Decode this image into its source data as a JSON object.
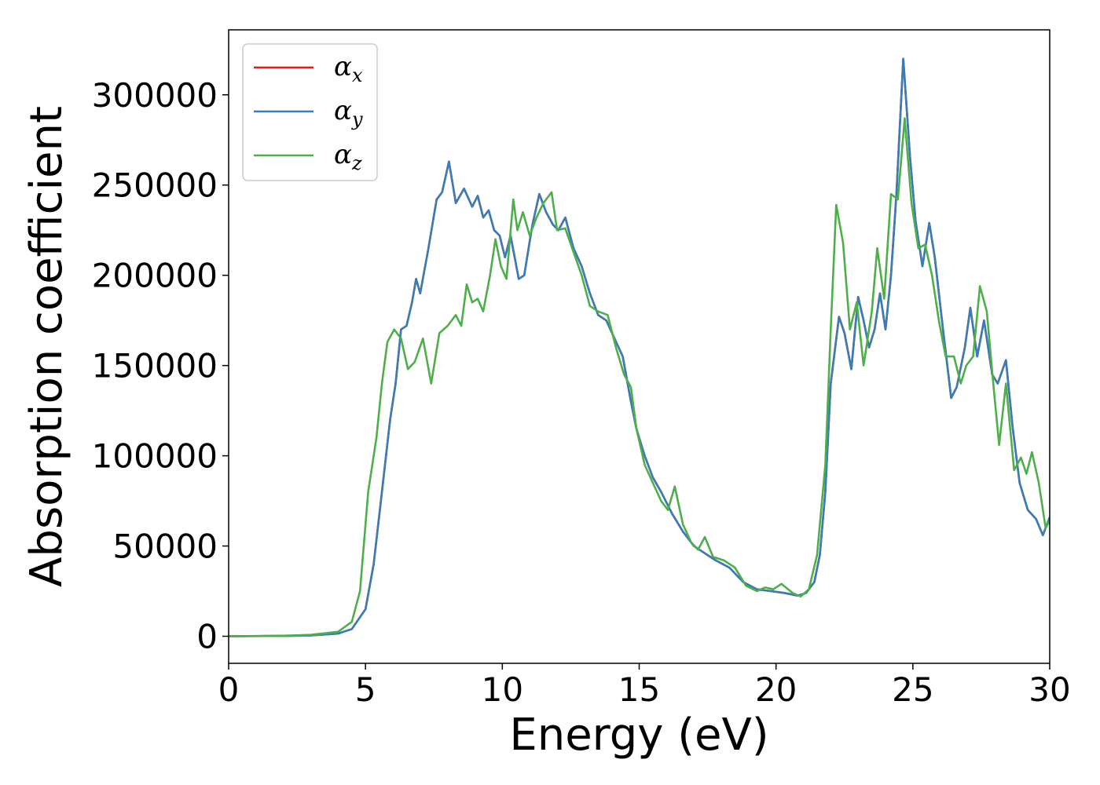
{
  "chart_data": {
    "type": "line",
    "xlabel": "Energy (eV)",
    "ylabel": "Absorption coefficient",
    "xlim": [
      0,
      30
    ],
    "ylim": [
      -15000,
      336000
    ],
    "xticks": [
      0,
      5,
      10,
      15,
      20,
      25,
      30
    ],
    "yticks": [
      0,
      50000,
      100000,
      150000,
      200000,
      250000,
      300000
    ],
    "xtick_labels": [
      "0",
      "5",
      "10",
      "15",
      "20",
      "25",
      "30"
    ],
    "ytick_labels": [
      "0",
      "50000",
      "100000",
      "150000",
      "200000",
      "250000",
      "300000"
    ],
    "grid": false,
    "legend_position": "upper-left",
    "series": [
      {
        "name": "x",
        "color": "#e41a1c",
        "points": [
          [
            0,
            0
          ],
          [
            2,
            200
          ],
          [
            3,
            500
          ],
          [
            4,
            1500
          ],
          [
            4.5,
            4000
          ],
          [
            5,
            15000
          ],
          [
            5.3,
            40000
          ],
          [
            5.6,
            80000
          ],
          [
            5.9,
            120000
          ],
          [
            6.1,
            140000
          ],
          [
            6.3,
            170000
          ],
          [
            6.5,
            172000
          ],
          [
            6.7,
            185000
          ],
          [
            6.85,
            198000
          ],
          [
            7,
            190000
          ],
          [
            7.3,
            215000
          ],
          [
            7.6,
            242000
          ],
          [
            7.8,
            246000
          ],
          [
            8.05,
            263000
          ],
          [
            8.3,
            240000
          ],
          [
            8.6,
            248000
          ],
          [
            8.9,
            238000
          ],
          [
            9.1,
            244000
          ],
          [
            9.3,
            232000
          ],
          [
            9.5,
            236000
          ],
          [
            9.7,
            225000
          ],
          [
            9.9,
            222000
          ],
          [
            10.1,
            210000
          ],
          [
            10.3,
            222000
          ],
          [
            10.6,
            198000
          ],
          [
            10.8,
            200000
          ],
          [
            11.1,
            228000
          ],
          [
            11.35,
            245000
          ],
          [
            11.6,
            235000
          ],
          [
            11.85,
            228000
          ],
          [
            12.05,
            225000
          ],
          [
            12.3,
            232000
          ],
          [
            12.6,
            215000
          ],
          [
            12.9,
            205000
          ],
          [
            13.2,
            190000
          ],
          [
            13.5,
            178000
          ],
          [
            13.8,
            175000
          ],
          [
            14.1,
            165000
          ],
          [
            14.4,
            155000
          ],
          [
            14.7,
            130000
          ],
          [
            14.9,
            115000
          ],
          [
            15.2,
            100000
          ],
          [
            15.5,
            88000
          ],
          [
            15.8,
            80000
          ],
          [
            16.2,
            68000
          ],
          [
            16.6,
            58000
          ],
          [
            17,
            50000
          ],
          [
            17.4,
            46000
          ],
          [
            17.8,
            42000
          ],
          [
            18.3,
            38000
          ],
          [
            18.8,
            30000
          ],
          [
            19.3,
            26000
          ],
          [
            19.8,
            25000
          ],
          [
            20.3,
            24000
          ],
          [
            20.8,
            22500
          ],
          [
            21.1,
            24000
          ],
          [
            21.4,
            30000
          ],
          [
            21.6,
            45000
          ],
          [
            21.8,
            80000
          ],
          [
            22,
            140000
          ],
          [
            22.3,
            177000
          ],
          [
            22.5,
            168000
          ],
          [
            22.75,
            148000
          ],
          [
            23,
            188000
          ],
          [
            23.2,
            175000
          ],
          [
            23.4,
            160000
          ],
          [
            23.6,
            170000
          ],
          [
            23.8,
            190000
          ],
          [
            24,
            170000
          ],
          [
            24.2,
            200000
          ],
          [
            24.4,
            245000
          ],
          [
            24.65,
            320000
          ],
          [
            24.9,
            265000
          ],
          [
            25.1,
            230000
          ],
          [
            25.35,
            205000
          ],
          [
            25.6,
            229000
          ],
          [
            25.8,
            210000
          ],
          [
            26.1,
            170000
          ],
          [
            26.4,
            132000
          ],
          [
            26.6,
            138000
          ],
          [
            26.9,
            160000
          ],
          [
            27.1,
            182000
          ],
          [
            27.35,
            155000
          ],
          [
            27.6,
            175000
          ],
          [
            27.9,
            145000
          ],
          [
            28.1,
            140000
          ],
          [
            28.4,
            153000
          ],
          [
            28.65,
            115000
          ],
          [
            28.9,
            85000
          ],
          [
            29.2,
            70000
          ],
          [
            29.5,
            65000
          ],
          [
            29.75,
            56000
          ],
          [
            30,
            66000
          ]
        ]
      },
      {
        "name": "y",
        "color": "#377eb8",
        "points": [
          [
            0,
            0
          ],
          [
            2,
            200
          ],
          [
            3,
            500
          ],
          [
            4,
            1500
          ],
          [
            4.5,
            4000
          ],
          [
            5,
            15000
          ],
          [
            5.3,
            40000
          ],
          [
            5.6,
            80000
          ],
          [
            5.9,
            120000
          ],
          [
            6.1,
            140000
          ],
          [
            6.3,
            170000
          ],
          [
            6.5,
            172000
          ],
          [
            6.7,
            185000
          ],
          [
            6.85,
            198000
          ],
          [
            7,
            190000
          ],
          [
            7.3,
            215000
          ],
          [
            7.6,
            242000
          ],
          [
            7.8,
            246000
          ],
          [
            8.05,
            263000
          ],
          [
            8.3,
            240000
          ],
          [
            8.6,
            248000
          ],
          [
            8.9,
            238000
          ],
          [
            9.1,
            244000
          ],
          [
            9.3,
            232000
          ],
          [
            9.5,
            236000
          ],
          [
            9.7,
            225000
          ],
          [
            9.9,
            222000
          ],
          [
            10.1,
            210000
          ],
          [
            10.3,
            222000
          ],
          [
            10.6,
            198000
          ],
          [
            10.8,
            200000
          ],
          [
            11.1,
            228000
          ],
          [
            11.35,
            245000
          ],
          [
            11.6,
            235000
          ],
          [
            11.85,
            228000
          ],
          [
            12.05,
            225000
          ],
          [
            12.3,
            232000
          ],
          [
            12.6,
            215000
          ],
          [
            12.9,
            205000
          ],
          [
            13.2,
            190000
          ],
          [
            13.5,
            178000
          ],
          [
            13.8,
            175000
          ],
          [
            14.1,
            165000
          ],
          [
            14.4,
            155000
          ],
          [
            14.7,
            130000
          ],
          [
            14.9,
            115000
          ],
          [
            15.2,
            100000
          ],
          [
            15.5,
            88000
          ],
          [
            15.8,
            80000
          ],
          [
            16.2,
            68000
          ],
          [
            16.6,
            58000
          ],
          [
            17,
            50000
          ],
          [
            17.4,
            46000
          ],
          [
            17.8,
            42000
          ],
          [
            18.3,
            38000
          ],
          [
            18.8,
            30000
          ],
          [
            19.3,
            26000
          ],
          [
            19.8,
            25000
          ],
          [
            20.3,
            24000
          ],
          [
            20.8,
            22500
          ],
          [
            21.1,
            24000
          ],
          [
            21.4,
            30000
          ],
          [
            21.6,
            45000
          ],
          [
            21.8,
            80000
          ],
          [
            22,
            140000
          ],
          [
            22.3,
            177000
          ],
          [
            22.5,
            168000
          ],
          [
            22.75,
            148000
          ],
          [
            23,
            188000
          ],
          [
            23.2,
            175000
          ],
          [
            23.4,
            160000
          ],
          [
            23.6,
            170000
          ],
          [
            23.8,
            190000
          ],
          [
            24,
            170000
          ],
          [
            24.2,
            200000
          ],
          [
            24.4,
            245000
          ],
          [
            24.65,
            320000
          ],
          [
            24.9,
            265000
          ],
          [
            25.1,
            230000
          ],
          [
            25.35,
            205000
          ],
          [
            25.6,
            229000
          ],
          [
            25.8,
            210000
          ],
          [
            26.1,
            170000
          ],
          [
            26.4,
            132000
          ],
          [
            26.6,
            138000
          ],
          [
            26.9,
            160000
          ],
          [
            27.1,
            182000
          ],
          [
            27.35,
            155000
          ],
          [
            27.6,
            175000
          ],
          [
            27.9,
            145000
          ],
          [
            28.1,
            140000
          ],
          [
            28.4,
            153000
          ],
          [
            28.65,
            115000
          ],
          [
            28.9,
            85000
          ],
          [
            29.2,
            70000
          ],
          [
            29.5,
            65000
          ],
          [
            29.75,
            56000
          ],
          [
            30,
            66000
          ]
        ]
      },
      {
        "name": "z",
        "color": "#4daf4a",
        "points": [
          [
            0,
            0
          ],
          [
            2,
            300
          ],
          [
            3,
            800
          ],
          [
            4,
            2500
          ],
          [
            4.5,
            8000
          ],
          [
            4.8,
            25000
          ],
          [
            5.1,
            80000
          ],
          [
            5.4,
            110000
          ],
          [
            5.6,
            140000
          ],
          [
            5.8,
            163000
          ],
          [
            6.05,
            170000
          ],
          [
            6.3,
            165000
          ],
          [
            6.55,
            148000
          ],
          [
            6.8,
            152000
          ],
          [
            7.1,
            165000
          ],
          [
            7.4,
            140000
          ],
          [
            7.7,
            168000
          ],
          [
            8,
            172000
          ],
          [
            8.3,
            178000
          ],
          [
            8.5,
            172000
          ],
          [
            8.7,
            195000
          ],
          [
            8.9,
            185000
          ],
          [
            9.1,
            187000
          ],
          [
            9.3,
            180000
          ],
          [
            9.55,
            200000
          ],
          [
            9.75,
            220000
          ],
          [
            9.95,
            205000
          ],
          [
            10.15,
            198000
          ],
          [
            10.4,
            242000
          ],
          [
            10.55,
            225000
          ],
          [
            10.75,
            235000
          ],
          [
            11,
            222000
          ],
          [
            11.25,
            232000
          ],
          [
            11.5,
            240000
          ],
          [
            11.8,
            246000
          ],
          [
            12,
            225000
          ],
          [
            12.3,
            226000
          ],
          [
            12.55,
            215000
          ],
          [
            12.9,
            200000
          ],
          [
            13.2,
            183000
          ],
          [
            13.5,
            180000
          ],
          [
            13.85,
            178000
          ],
          [
            14.15,
            160000
          ],
          [
            14.45,
            145000
          ],
          [
            14.7,
            138000
          ],
          [
            14.9,
            115000
          ],
          [
            15.2,
            95000
          ],
          [
            15.5,
            85000
          ],
          [
            15.8,
            75000
          ],
          [
            16.05,
            70000
          ],
          [
            16.3,
            83000
          ],
          [
            16.6,
            62000
          ],
          [
            16.9,
            52000
          ],
          [
            17.15,
            48000
          ],
          [
            17.4,
            55000
          ],
          [
            17.7,
            44000
          ],
          [
            18.1,
            42000
          ],
          [
            18.5,
            38000
          ],
          [
            18.9,
            28000
          ],
          [
            19.3,
            25000
          ],
          [
            19.6,
            27000
          ],
          [
            19.9,
            26000
          ],
          [
            20.2,
            29000
          ],
          [
            20.6,
            24000
          ],
          [
            20.9,
            22000
          ],
          [
            21.2,
            26000
          ],
          [
            21.5,
            45000
          ],
          [
            21.8,
            95000
          ],
          [
            22,
            170000
          ],
          [
            22.2,
            239000
          ],
          [
            22.45,
            218000
          ],
          [
            22.7,
            170000
          ],
          [
            22.95,
            185000
          ],
          [
            23.2,
            150000
          ],
          [
            23.5,
            180000
          ],
          [
            23.7,
            215000
          ],
          [
            23.95,
            187000
          ],
          [
            24.2,
            245000
          ],
          [
            24.45,
            242000
          ],
          [
            24.7,
            287000
          ],
          [
            24.95,
            240000
          ],
          [
            25.2,
            215000
          ],
          [
            25.45,
            217000
          ],
          [
            25.7,
            200000
          ],
          [
            25.95,
            175000
          ],
          [
            26.2,
            155000
          ],
          [
            26.5,
            155000
          ],
          [
            26.75,
            140000
          ],
          [
            26.95,
            150000
          ],
          [
            27.2,
            155000
          ],
          [
            27.45,
            194000
          ],
          [
            27.7,
            180000
          ],
          [
            27.95,
            138000
          ],
          [
            28.15,
            106000
          ],
          [
            28.4,
            140000
          ],
          [
            28.7,
            92000
          ],
          [
            28.95,
            99000
          ],
          [
            29.15,
            90000
          ],
          [
            29.35,
            102000
          ],
          [
            29.6,
            85000
          ],
          [
            29.85,
            60000
          ],
          [
            30,
            64000
          ]
        ]
      }
    ]
  },
  "legend": {
    "base": "α",
    "items": [
      {
        "sub": "x",
        "color": "#e41a1c"
      },
      {
        "sub": "y",
        "color": "#377eb8"
      },
      {
        "sub": "z",
        "color": "#4daf4a"
      }
    ]
  }
}
